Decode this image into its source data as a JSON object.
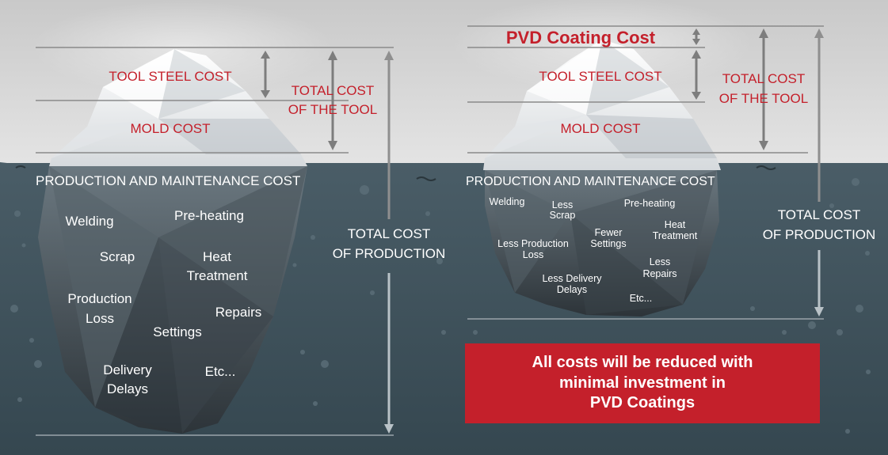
{
  "left": {
    "tool_steel_cost": "TOOL STEEL COST",
    "mold_cost": "MOLD COST",
    "total_cost_tool_line1": "TOTAL COST",
    "total_cost_tool_line2": "OF THE TOOL",
    "production_maintenance_cost": "PRODUCTION AND MAINTENANCE COST",
    "total_cost_production_line1": "TOTAL COST",
    "total_cost_production_line2": "OF PRODUCTION",
    "items": {
      "welding": "Welding",
      "pre_heating": "Pre-heating",
      "scrap": "Scrap",
      "heat_line1": "Heat",
      "heat_line2": "Treatment",
      "production_line1": "Production",
      "production_line2": "Loss",
      "repairs": "Repairs",
      "settings": "Settings",
      "delivery_line1": "Delivery",
      "delivery_line2": "Delays",
      "etc": "Etc..."
    }
  },
  "right": {
    "pvd_coating_cost": "PVD Coating Cost",
    "tool_steel_cost": "TOOL STEEL COST",
    "mold_cost": "MOLD COST",
    "total_cost_tool_line1": "TOTAL COST",
    "total_cost_tool_line2": "OF THE TOOL",
    "production_maintenance_cost": "PRODUCTION AND MAINTENANCE COST",
    "total_cost_production_line1": "TOTAL COST",
    "total_cost_production_line2": "OF PRODUCTION",
    "items": {
      "welding": "Welding",
      "less_scrap_line1": "Less",
      "less_scrap_line2": "Scrap",
      "pre_heating": "Pre-heating",
      "fewer_line1": "Fewer",
      "fewer_line2": "Settings",
      "heat_line1": "Heat",
      "heat_line2": "Treatment",
      "less_production_line1": "Less Production",
      "less_production_line2": "Loss",
      "less_repairs_line1": "Less",
      "less_repairs_line2": "Repairs",
      "less_delivery_line1": "Less Delivery",
      "less_delivery_line2": "Delays",
      "etc": "Etc..."
    }
  },
  "callout": {
    "line1": "All costs will be reduced with",
    "line2": "minimal investment in",
    "line3": "PVD Coatings"
  },
  "colors": {
    "accent_red": "#c4202b",
    "water": "#40535d",
    "sky": "#d8d8d8",
    "guide_line": "#888888"
  }
}
